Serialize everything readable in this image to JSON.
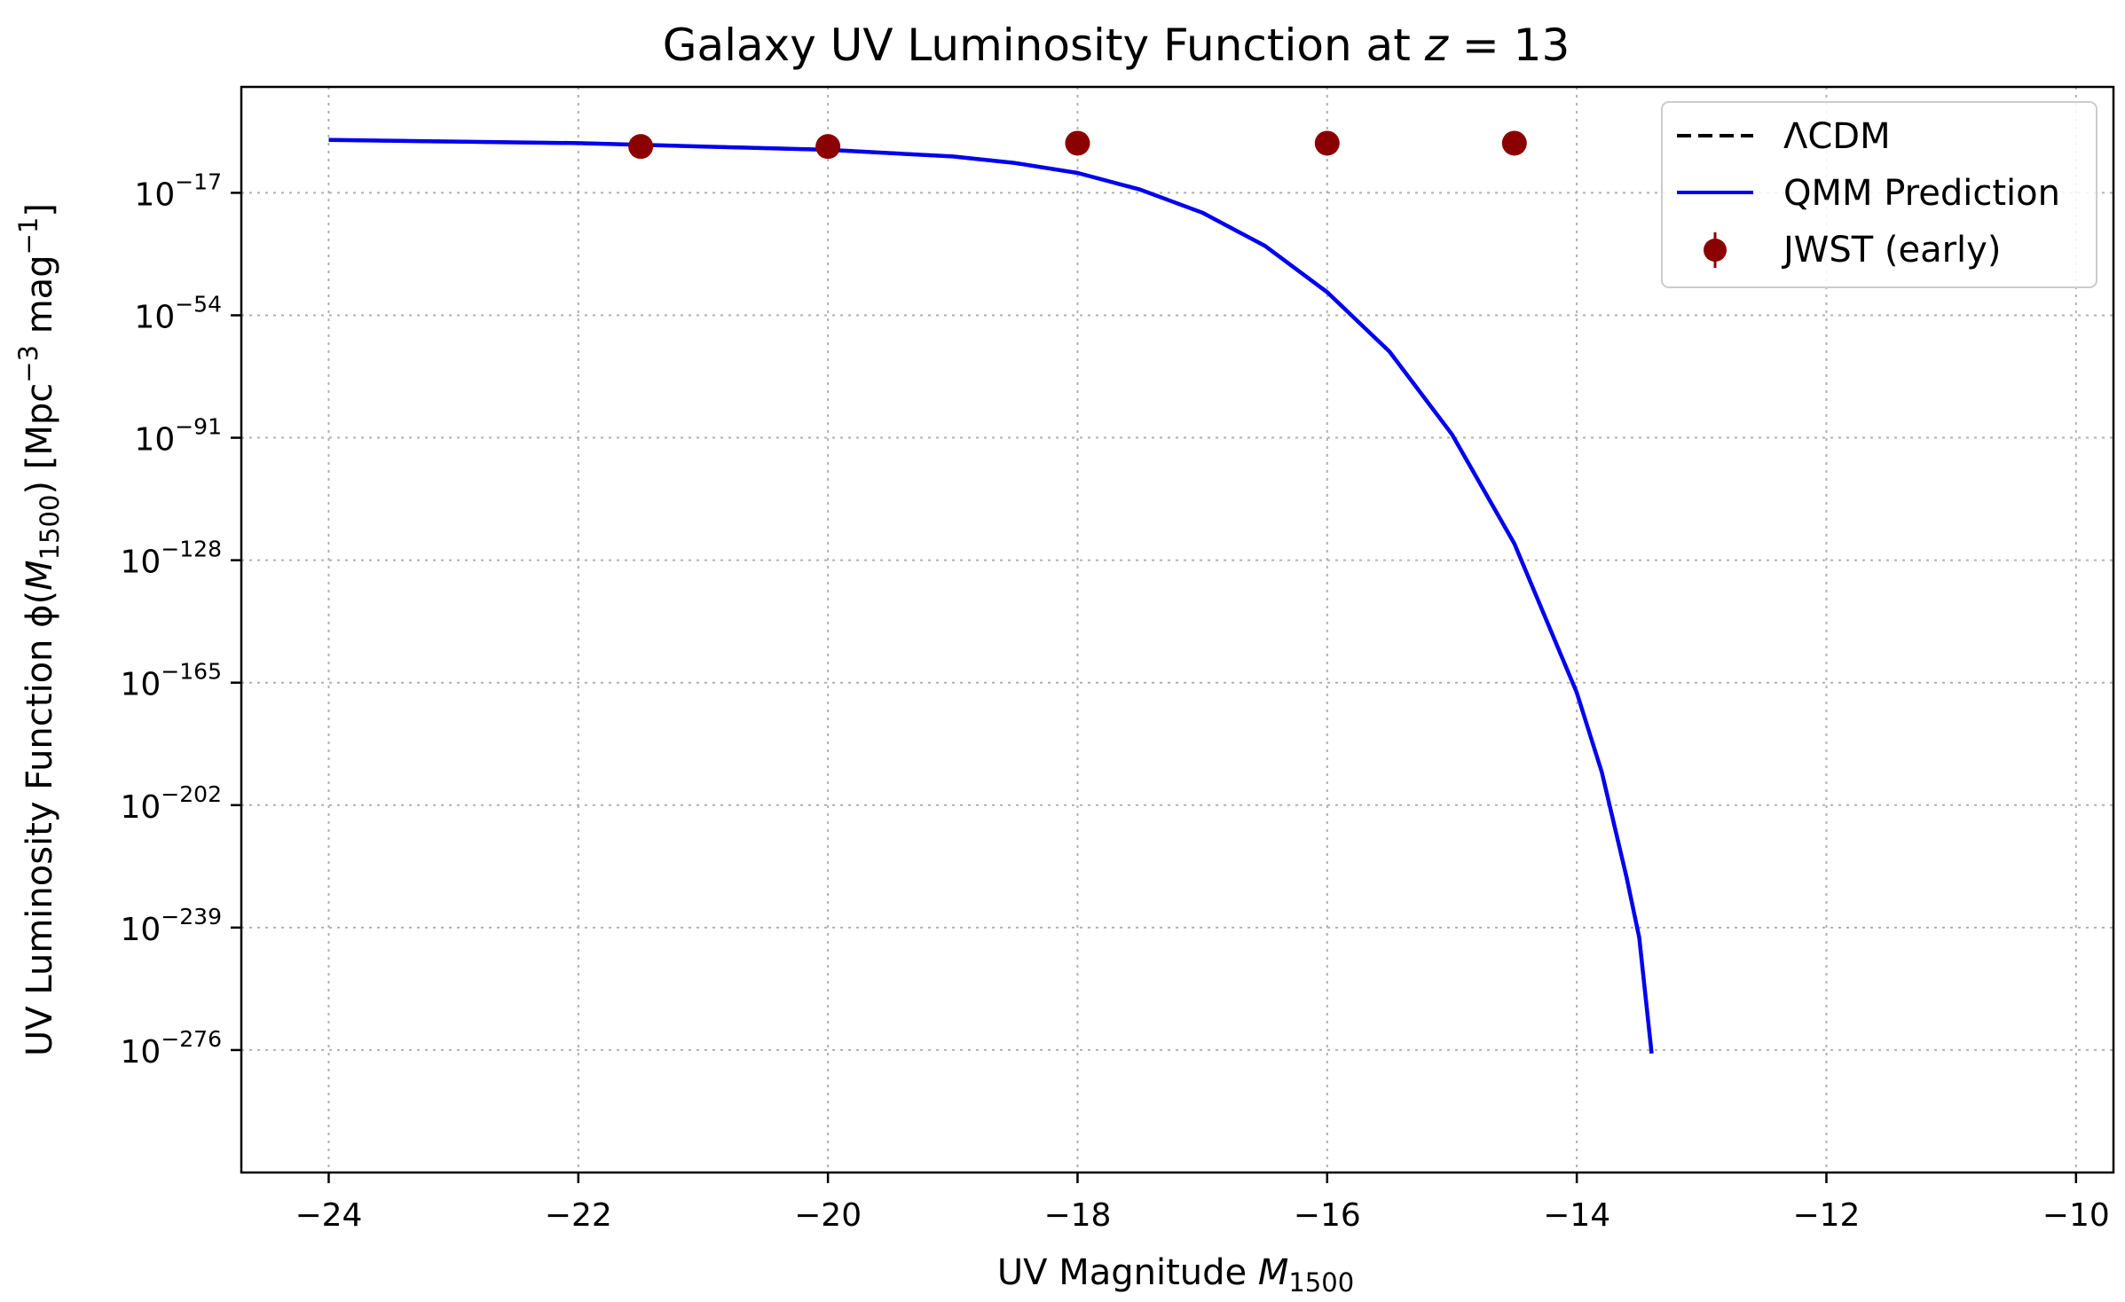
{
  "chart_data": {
    "type": "line",
    "title": "Galaxy UV Luminosity Function at z = 13",
    "title_main": "Galaxy UV Luminosity Function at ",
    "title_var": "z",
    "title_eq": " = 13",
    "xlabel_main": "UV Magnitude ",
    "xlabel_var": "M",
    "xlabel_sub": "1500",
    "ylabel_main": "UV Luminosity Function ϕ(",
    "ylabel_var": "M",
    "ylabel_sub": "1500",
    "ylabel_mid": ") [Mpc",
    "ylabel_exp1": "−3",
    "ylabel_mid2": " mag",
    "ylabel_exp2": "−1",
    "ylabel_end": "]",
    "xlim": [
      -24.7,
      -9.7
    ],
    "ylim_log10": [
      -313,
      15
    ],
    "yscale": "log",
    "x_ticks": [
      -24,
      -22,
      -20,
      -18,
      -16,
      -14,
      -12,
      -10
    ],
    "x_tick_labels": [
      "−24",
      "−22",
      "−20",
      "−18",
      "−16",
      "−14",
      "−12",
      "−10"
    ],
    "y_ticks_log10": [
      -17,
      -54,
      -91,
      -128,
      -165,
      -202,
      -239,
      -276
    ],
    "y_tick_labels": [
      "10−17",
      "10−54",
      "10−91",
      "10−128",
      "10−165",
      "10−202",
      "10−239",
      "10−276"
    ],
    "grid": true,
    "legend_position": "upper-right",
    "series": [
      {
        "name": "ΛCDM",
        "style": "dashed",
        "color": "#000000",
        "x": [
          -24,
          -23,
          -22,
          -21,
          -20,
          -19,
          -18.5,
          -18,
          -17.5,
          -17,
          -16.5,
          -16,
          -15.5,
          -15,
          -14.5,
          -14,
          -13.8,
          -13.6,
          -13.5,
          -13.4
        ],
        "log10_y": [
          -1,
          -1.5,
          -2,
          -3,
          -4,
          -6,
          -8,
          -11,
          -16,
          -23,
          -33,
          -47,
          -65,
          -90,
          -123,
          -168,
          -192,
          -224,
          -242,
          -277
        ]
      },
      {
        "name": "QMM Prediction",
        "style": "solid",
        "color": "#0000ee",
        "x": [
          -24,
          -23,
          -22,
          -21,
          -20,
          -19,
          -18.5,
          -18,
          -17.5,
          -17,
          -16.5,
          -16,
          -15.5,
          -15,
          -14.5,
          -14,
          -13.8,
          -13.6,
          -13.5,
          -13.4
        ],
        "log10_y": [
          -1,
          -1.5,
          -2,
          -3,
          -4,
          -6,
          -8,
          -11,
          -16,
          -23,
          -33,
          -47,
          -65,
          -90,
          -123,
          -168,
          -192,
          -224,
          -242,
          -277
        ]
      },
      {
        "name": "JWST (early)",
        "style": "errorbar",
        "color": "#8b0000",
        "x": [
          -21.5,
          -20,
          -18,
          -16,
          -14.5
        ],
        "log10_y": [
          -3,
          -3,
          -2,
          -2,
          -2
        ]
      }
    ]
  }
}
